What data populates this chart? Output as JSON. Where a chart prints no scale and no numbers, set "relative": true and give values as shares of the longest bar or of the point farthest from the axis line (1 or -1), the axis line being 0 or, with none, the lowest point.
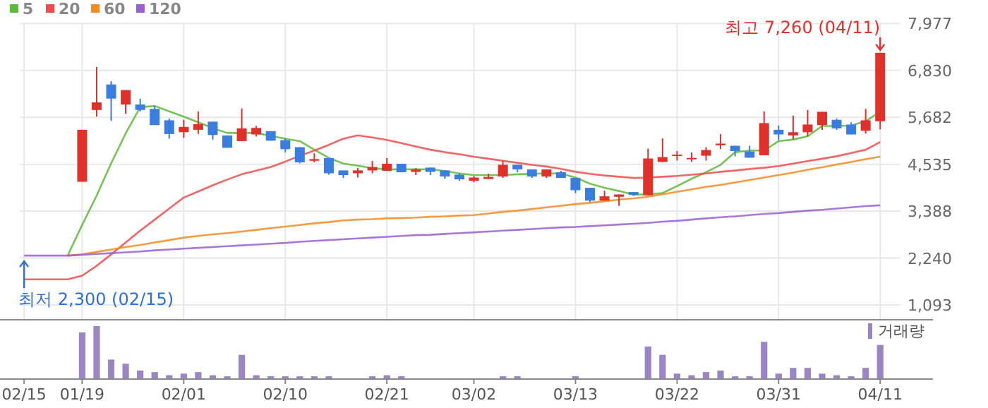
{
  "chart_data": [
    {
      "type": "candlestick",
      "categories": [
        "02/15",
        null,
        null,
        null,
        "01/19",
        null,
        null,
        null,
        null,
        null,
        null,
        "02/01",
        null,
        null,
        null,
        null,
        null,
        null,
        "02/10",
        null,
        null,
        null,
        null,
        null,
        null,
        "02/21",
        null,
        null,
        null,
        null,
        null,
        "03/02",
        null,
        null,
        null,
        null,
        null,
        null,
        "03/13",
        null,
        null,
        null,
        null,
        null,
        null,
        "03/22",
        null,
        null,
        null,
        null,
        null,
        null,
        "03/31",
        null,
        null,
        null,
        null,
        null,
        null,
        "04/11"
      ],
      "ohlc": [
        null,
        null,
        null,
        null,
        [
          4107,
          5378,
          4107,
          5378
        ],
        [
          5863,
          6913,
          5701,
          6047
        ],
        [
          6487,
          6567,
          5597,
          6141
        ],
        [
          5996,
          6348,
          5770,
          6348
        ],
        [
          5996,
          6141,
          5829,
          5863
        ],
        [
          5888,
          5967,
          5493,
          5493
        ],
        [
          5610,
          5655,
          5160,
          5274
        ],
        [
          5319,
          5621,
          5181,
          5448
        ],
        [
          5378,
          5829,
          5274,
          5517
        ],
        [
          5576,
          5576,
          5136,
          5250
        ],
        [
          5240,
          5240,
          4938,
          4938
        ],
        [
          5101,
          5898,
          5101,
          5413
        ],
        [
          5264,
          5472,
          5215,
          5423
        ],
        [
          5344,
          5344,
          5112,
          5112
        ],
        [
          5125,
          5170,
          4825,
          4904
        ],
        [
          4952,
          4952,
          4557,
          4581
        ],
        [
          4620,
          4800,
          4581,
          4660
        ],
        [
          4685,
          4685,
          4280,
          4314
        ],
        [
          4384,
          4384,
          4200,
          4270
        ],
        [
          4314,
          4443,
          4210,
          4384
        ],
        [
          4384,
          4616,
          4314,
          4467
        ],
        [
          4373,
          4685,
          4373,
          4547
        ],
        [
          4547,
          4547,
          4339,
          4339
        ],
        [
          4349,
          4443,
          4270,
          4408
        ],
        [
          4453,
          4453,
          4270,
          4349
        ],
        [
          4384,
          4384,
          4176,
          4235
        ],
        [
          4280,
          4314,
          4131,
          4166
        ],
        [
          4131,
          4245,
          4096,
          4210
        ],
        [
          4176,
          4304,
          4176,
          4225
        ],
        [
          4235,
          4616,
          4200,
          4522
        ],
        [
          4522,
          4522,
          4339,
          4408
        ],
        [
          4408,
          4408,
          4200,
          4235
        ],
        [
          4235,
          4408,
          4200,
          4408
        ],
        [
          4339,
          4373,
          4200,
          4200
        ],
        [
          4200,
          4200,
          3829,
          3899
        ],
        [
          3958,
          3958,
          3611,
          3646
        ],
        [
          3646,
          3888,
          3646,
          3750
        ],
        [
          3739,
          3795,
          3518,
          3795
        ],
        [
          3854,
          3854,
          3760,
          3785
        ],
        [
          3774,
          4917,
          3774,
          4675
        ],
        [
          4592,
          5170,
          4592,
          4710
        ],
        [
          4740,
          4858,
          4626,
          4770
        ],
        [
          4660,
          4824,
          4592,
          4690
        ],
        [
          4744,
          4952,
          4626,
          4883
        ],
        [
          5000,
          5274,
          4904,
          5040
        ],
        [
          4987,
          4987,
          4730,
          4858
        ],
        [
          4848,
          4987,
          4696,
          4696
        ],
        [
          4755,
          5829,
          4755,
          5541
        ],
        [
          5378,
          5482,
          5125,
          5264
        ],
        [
          5240,
          5725,
          5146,
          5319
        ],
        [
          5319,
          5863,
          5215,
          5506
        ],
        [
          5493,
          5818,
          5378,
          5818
        ],
        [
          5621,
          5655,
          5378,
          5413
        ],
        [
          5506,
          5562,
          5264,
          5264
        ],
        [
          5354,
          5888,
          5285,
          5610
        ],
        [
          5586,
          7260,
          5389,
          7260
        ]
      ],
      "series": [
        {
          "name": "5",
          "type": "line",
          "color": "#5dba3b",
          "values": [
            null,
            null,
            null,
            2300,
            3050,
            3770,
            4560,
            5290,
            5930,
            5960,
            5830,
            5700,
            5560,
            5420,
            5300,
            5300,
            5300,
            5230,
            5160,
            5100,
            4890,
            4690,
            4550,
            4500,
            4440,
            4410,
            4410,
            4410,
            4410,
            4370,
            4310,
            4270,
            4270,
            4270,
            4290,
            4300,
            4310,
            4310,
            4210,
            4060,
            3960,
            3880,
            3790,
            3800,
            3830,
            4000,
            4180,
            4340,
            4520,
            4830,
            4870,
            4870,
            5100,
            5140,
            5220,
            5470,
            5470,
            5480,
            5590,
            5820
          ]
        },
        {
          "name": "20",
          "type": "line",
          "color": "#f04a4a",
          "values": [
            1720,
            1720,
            1720,
            1720,
            1810,
            2050,
            2330,
            2620,
            2910,
            3180,
            3450,
            3720,
            3870,
            4020,
            4160,
            4290,
            4380,
            4470,
            4600,
            4740,
            4870,
            5010,
            5160,
            5240,
            5190,
            5130,
            5050,
            4970,
            4890,
            4830,
            4780,
            4720,
            4670,
            4620,
            4570,
            4520,
            4480,
            4420,
            4350,
            4300,
            4260,
            4230,
            4200,
            4210,
            4230,
            4250,
            4280,
            4310,
            4350,
            4380,
            4420,
            4450,
            4490,
            4550,
            4610,
            4670,
            4730,
            4810,
            4890,
            5080
          ]
        },
        {
          "name": "60",
          "type": "line",
          "color": "#f58a1e",
          "values": [
            null,
            null,
            null,
            2300,
            2330,
            2390,
            2450,
            2510,
            2560,
            2620,
            2680,
            2740,
            2780,
            2820,
            2850,
            2890,
            2930,
            2970,
            3010,
            3050,
            3090,
            3120,
            3160,
            3180,
            3190,
            3210,
            3220,
            3230,
            3250,
            3260,
            3280,
            3290,
            3330,
            3370,
            3400,
            3440,
            3480,
            3520,
            3560,
            3590,
            3630,
            3670,
            3700,
            3740,
            3800,
            3860,
            3920,
            3980,
            4030,
            4090,
            4150,
            4210,
            4270,
            4330,
            4400,
            4460,
            4530,
            4590,
            4660,
            4720
          ]
        },
        {
          "name": "120",
          "type": "line",
          "color": "#9a5fd0",
          "values": [
            2300,
            2300,
            2300,
            2300,
            2320,
            2340,
            2360,
            2380,
            2400,
            2430,
            2450,
            2470,
            2490,
            2510,
            2530,
            2550,
            2570,
            2590,
            2610,
            2640,
            2660,
            2680,
            2700,
            2720,
            2740,
            2760,
            2780,
            2800,
            2810,
            2830,
            2850,
            2870,
            2890,
            2910,
            2930,
            2950,
            2970,
            2990,
            3000,
            3020,
            3040,
            3060,
            3080,
            3100,
            3130,
            3150,
            3180,
            3210,
            3240,
            3260,
            3290,
            3320,
            3340,
            3370,
            3400,
            3420,
            3450,
            3480,
            3510,
            3530
          ]
        }
      ],
      "ylim": [
        748,
        8000
      ],
      "yticks": [
        {
          "value": 1093,
          "label": "1,093"
        },
        {
          "value": 2240,
          "label": "2,240"
        },
        {
          "value": 3388,
          "label": "3,388"
        },
        {
          "value": 4535,
          "label": "4,535"
        },
        {
          "value": 5682,
          "label": "5,682"
        },
        {
          "value": 6830,
          "label": "6,830"
        },
        {
          "value": 7977,
          "label": "7,977"
        }
      ],
      "grid": true,
      "legend": "top left",
      "tick_labels": "y",
      "annotations": [
        {
          "text": "최고 7,260 (04/11)",
          "x": "04/11",
          "y": 7260
        },
        {
          "text": "최저 2,300 (02/15)",
          "x": "02/15",
          "y": 2300
        }
      ]
    },
    {
      "type": "bar",
      "categories": [
        "02/15",
        null,
        null,
        null,
        "01/19",
        null,
        null,
        null,
        null,
        null,
        null,
        "02/01",
        null,
        null,
        null,
        null,
        null,
        null,
        "02/10",
        null,
        null,
        null,
        null,
        null,
        null,
        "02/21",
        null,
        null,
        null,
        null,
        null,
        "03/02",
        null,
        null,
        null,
        null,
        null,
        null,
        "03/13",
        null,
        null,
        null,
        null,
        null,
        null,
        "03/22",
        null,
        null,
        null,
        null,
        null,
        null,
        "03/31",
        null,
        null,
        null,
        null,
        null,
        null,
        "04/11"
      ],
      "series": [
        {
          "name": "거래량",
          "color": "#9b86c4",
          "values": [
            0,
            0,
            0,
            0,
            0.88,
            1,
            0.36,
            0.28,
            0.15,
            0.12,
            0.06,
            0.09,
            0.12,
            0.06,
            0.04,
            0.45,
            0.06,
            0.04,
            0.04,
            0.04,
            0.04,
            0.04,
            0,
            0,
            0.04,
            0.06,
            0.04,
            0,
            0,
            0,
            0,
            0,
            0,
            0.04,
            0.04,
            0,
            0,
            0,
            0.04,
            0,
            0,
            0,
            0,
            0.61,
            0.45,
            0.09,
            0.06,
            0.12,
            0.15,
            0.04,
            0.04,
            0.7,
            0.09,
            0.2,
            0.2,
            0.09,
            0.06,
            0.04,
            0.2,
            0.64
          ]
        }
      ],
      "relative": true,
      "legend": "top right",
      "tick_labels": "x"
    }
  ]
}
